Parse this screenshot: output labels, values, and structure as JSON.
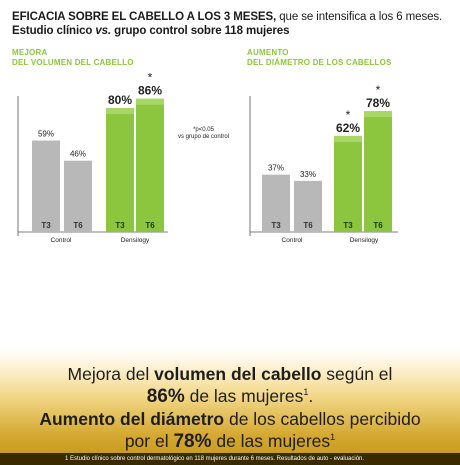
{
  "header": {
    "line1_bold": "EFICACIA SOBRE EL CABELLO A LOS 3 MESES,",
    "line1_rest": " que se intensifica a los 6 meses.",
    "line2_a": "Estudio clínico ",
    "line2_b": "vs.",
    "line2_c": " grupo control sobre 118 mujeres"
  },
  "significance_note": {
    "line1": "*p<0.05",
    "line2": "vs grupo de control"
  },
  "colors": {
    "green": "#8cc63f",
    "gray": "#b8b8b8",
    "title_green": "#8cc63f"
  },
  "chart_data": [
    {
      "type": "bar",
      "title": [
        "MEJORA",
        "DEL VOLUMEN DEL CABELLO"
      ],
      "groups": [
        "Control",
        "Densilogy"
      ],
      "bars": [
        {
          "group": "Control",
          "label": "T3",
          "value": 59,
          "value_label": "59%",
          "color": "gray",
          "star": false
        },
        {
          "group": "Control",
          "label": "T6",
          "value": 46,
          "value_label": "46%",
          "color": "gray",
          "star": false
        },
        {
          "group": "Densilogy",
          "label": "T3",
          "value": 80,
          "value_label": "80%",
          "color": "green",
          "star": false
        },
        {
          "group": "Densilogy",
          "label": "T6",
          "value": 86,
          "value_label": "86%",
          "color": "green",
          "star": true
        }
      ],
      "ylim": [
        0,
        100
      ],
      "xlabel": "",
      "ylabel": ""
    },
    {
      "type": "bar",
      "title": [
        "AUMENTO",
        "DEL DIÁMETRO DE LOS CABELLOS"
      ],
      "groups": [
        "Control",
        "Densilogy"
      ],
      "bars": [
        {
          "group": "Control",
          "label": "T3",
          "value": 37,
          "value_label": "37%",
          "color": "gray",
          "star": false
        },
        {
          "group": "Control",
          "label": "T6",
          "value": 33,
          "value_label": "33%",
          "color": "gray",
          "star": false
        },
        {
          "group": "Densilogy",
          "label": "T3",
          "value": 62,
          "value_label": "62%",
          "color": "green",
          "star": true
        },
        {
          "group": "Densilogy",
          "label": "T6",
          "value": 78,
          "value_label": "78%",
          "color": "green",
          "star": true
        }
      ],
      "ylim": [
        0,
        100
      ],
      "xlabel": "",
      "ylabel": ""
    }
  ],
  "banner": {
    "l1_a": "Mejora del ",
    "l1_b": "volumen del cabello",
    "l1_c": " según el",
    "l2_a": "86%",
    "l2_b": " de las mujeres",
    "l2_sup": "1",
    "l2_c": ".",
    "l3_a": "Aumento del diámetro",
    "l3_b": " de los cabellos percibido",
    "l4_a": "por el ",
    "l4_b": "78%",
    "l4_c": " de las mujeres",
    "l4_sup": "1",
    "study": "1 Estudio clínico sobre control dermatológico en 118 mujeres durante 6 meses. Resultados de auto - evaluación."
  }
}
